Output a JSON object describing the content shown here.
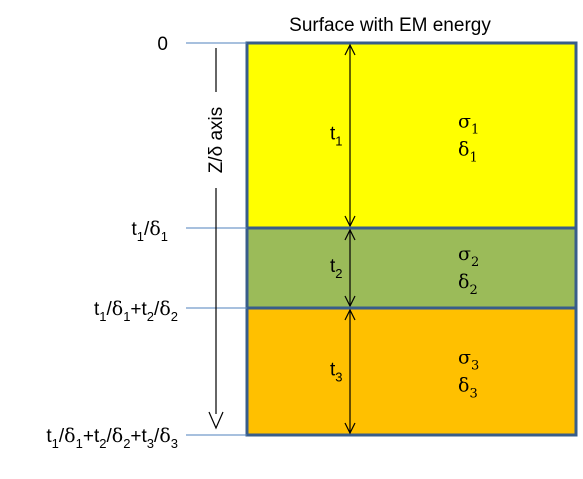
{
  "title": "Surface with EM energy",
  "axis": {
    "label": "Z/δ axis",
    "ticks": [
      {
        "parts": [
          {
            "t": "0"
          }
        ]
      },
      {
        "parts": [
          {
            "t": "t"
          },
          {
            "t": "1",
            "sub": true
          },
          {
            "t": "/δ"
          },
          {
            "t": "1",
            "sub": true
          }
        ]
      },
      {
        "parts": [
          {
            "t": "t"
          },
          {
            "t": "1",
            "sub": true
          },
          {
            "t": "/δ"
          },
          {
            "t": "1",
            "sub": true
          },
          {
            "t": "+t"
          },
          {
            "t": "2",
            "sub": true
          },
          {
            "t": "/δ"
          },
          {
            "t": "2",
            "sub": true
          }
        ]
      },
      {
        "parts": [
          {
            "t": "t"
          },
          {
            "t": "1",
            "sub": true
          },
          {
            "t": "/δ"
          },
          {
            "t": "1",
            "sub": true
          },
          {
            "t": "+t"
          },
          {
            "t": "2",
            "sub": true
          },
          {
            "t": "/δ"
          },
          {
            "t": "2",
            "sub": true
          },
          {
            "t": "+t"
          },
          {
            "t": "3",
            "sub": true
          },
          {
            "t": "/δ"
          },
          {
            "t": "3",
            "sub": true
          }
        ]
      }
    ]
  },
  "layers": [
    {
      "color": "#ffff00",
      "thickness": {
        "t": "t",
        "sub": "1"
      },
      "sigma": {
        "t": "σ",
        "sub": "1"
      },
      "delta": {
        "t": "δ",
        "sub": "1"
      }
    },
    {
      "color": "#9bbb59",
      "thickness": {
        "t": "t",
        "sub": "2"
      },
      "sigma": {
        "t": "σ",
        "sub": "2"
      },
      "delta": {
        "t": "δ",
        "sub": "2"
      }
    },
    {
      "color": "#ffc000",
      "thickness": {
        "t": "t",
        "sub": "3"
      },
      "sigma": {
        "t": "σ",
        "sub": "3"
      },
      "delta": {
        "t": "δ",
        "sub": "3"
      }
    }
  ],
  "colors": {
    "border": "#385d8a",
    "tick": "#4f81bd",
    "arrow": "#000000"
  }
}
